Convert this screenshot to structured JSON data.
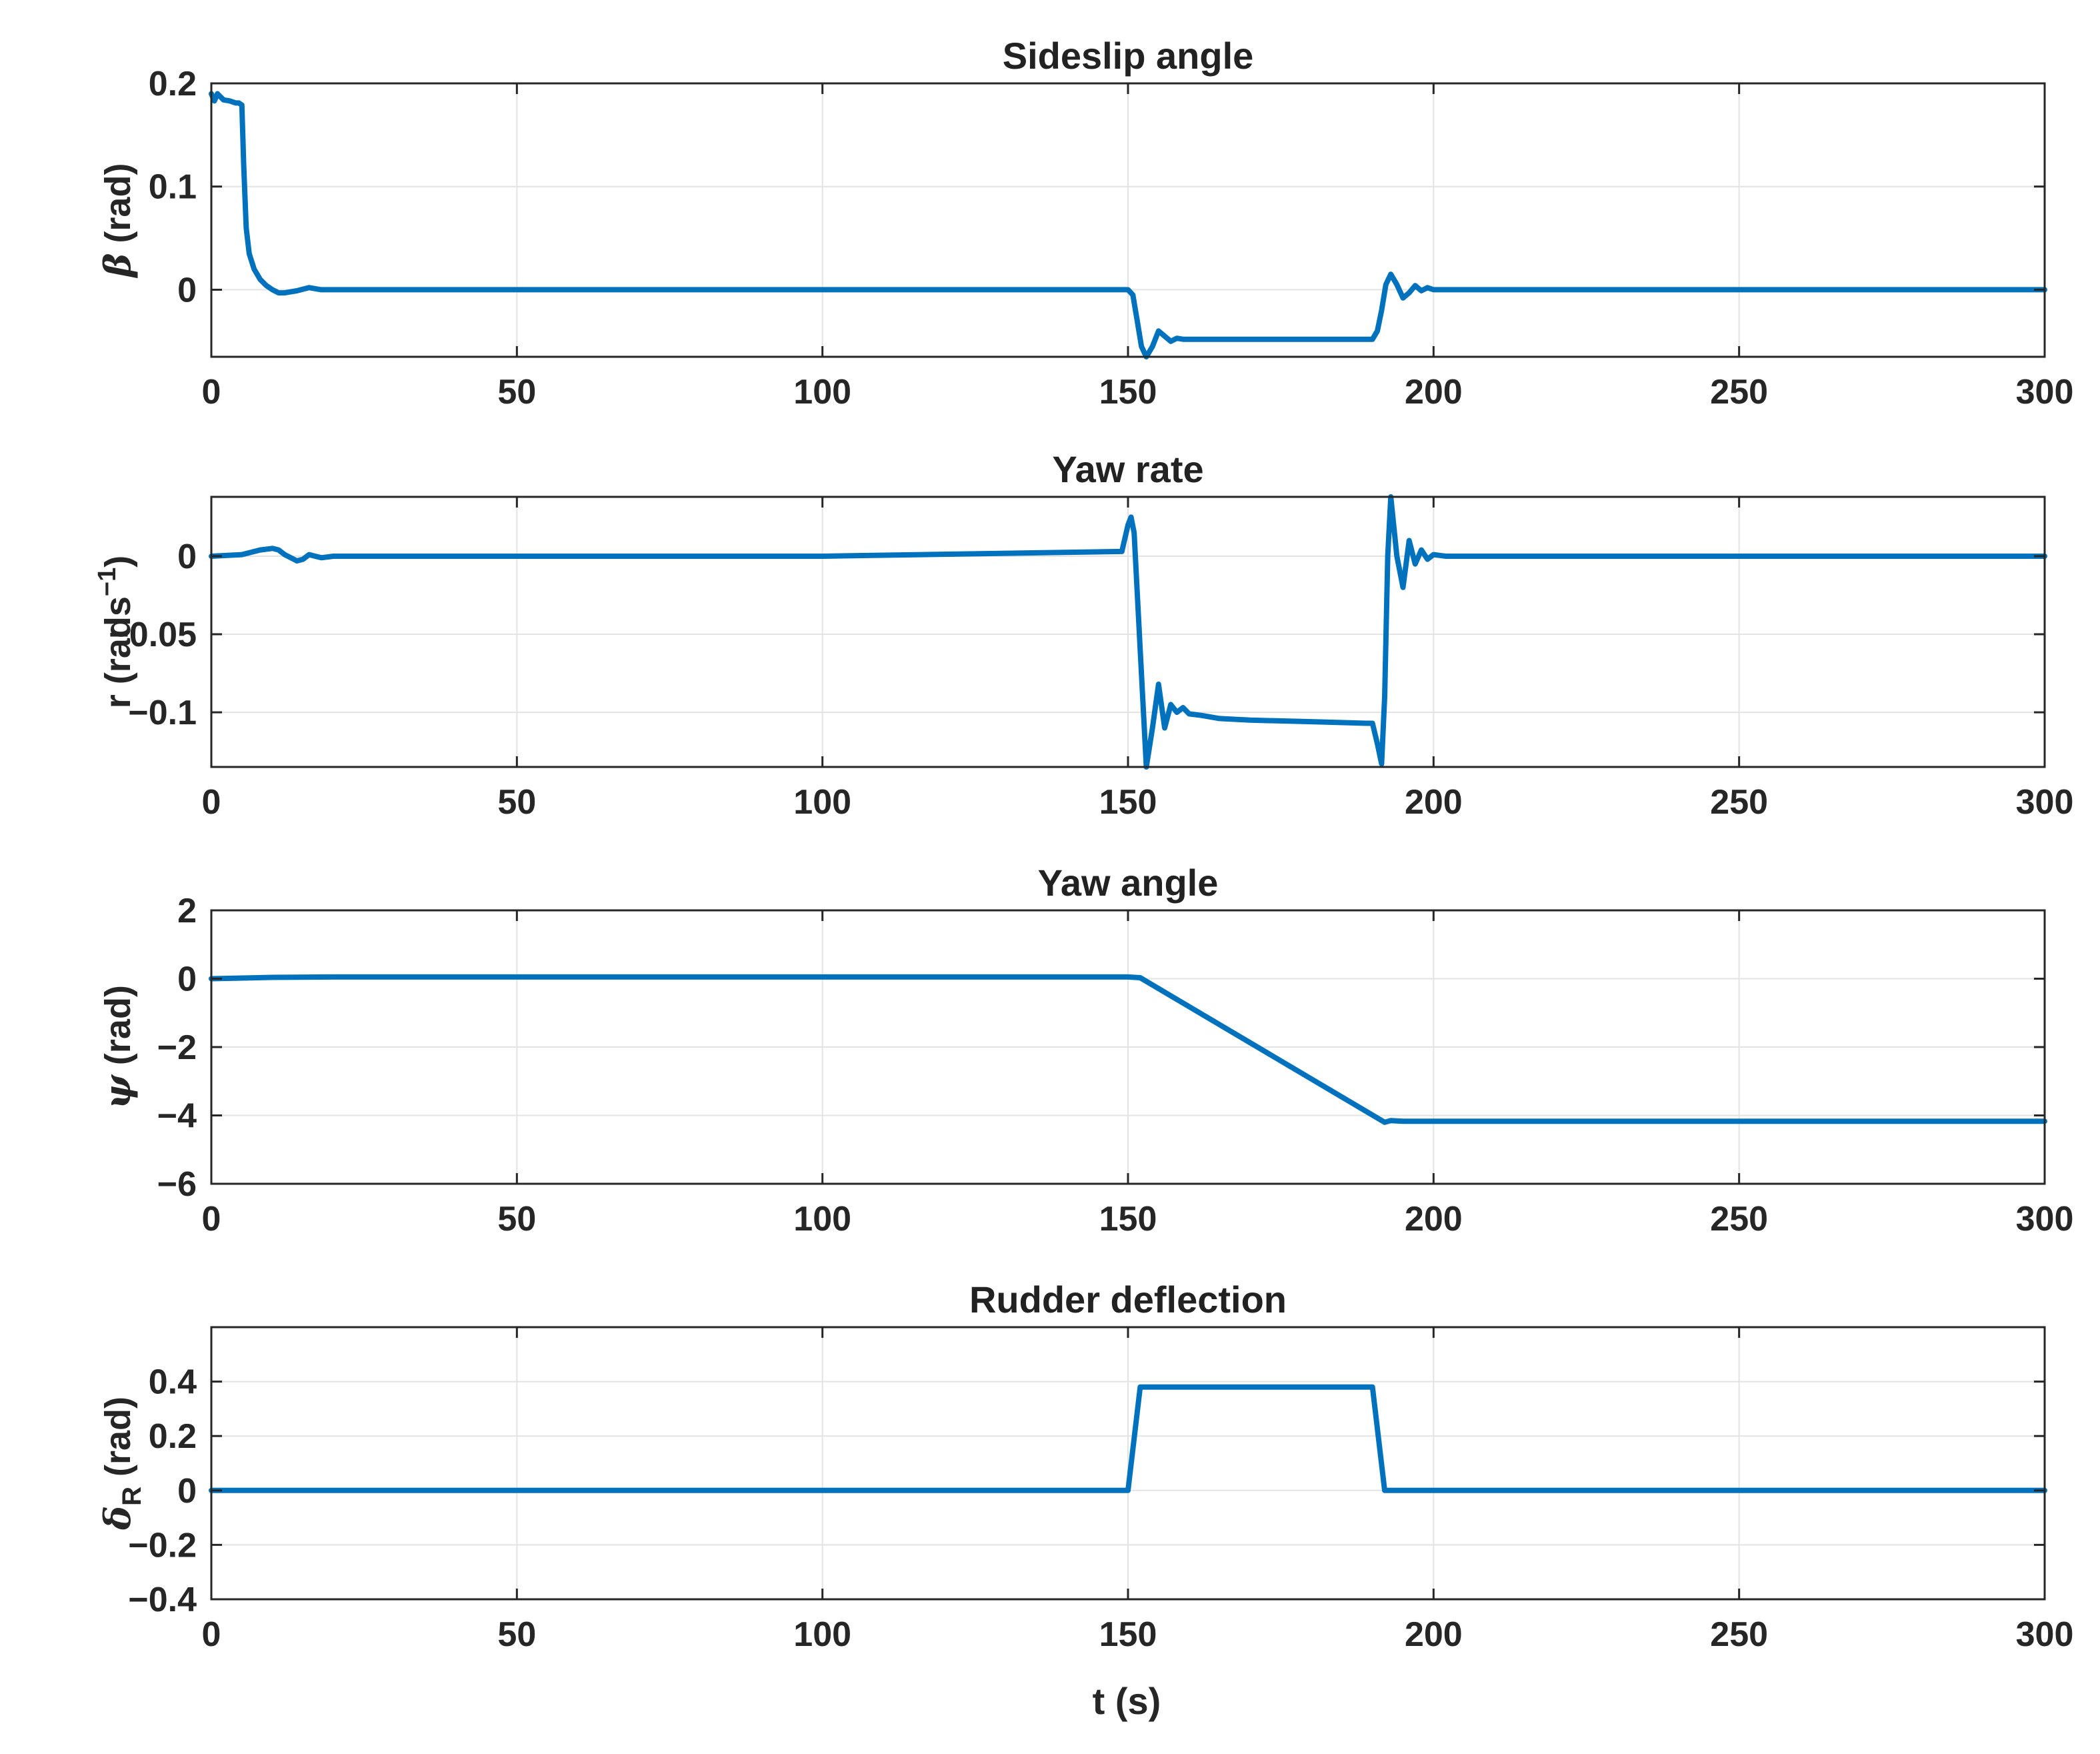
{
  "figure": {
    "line_color": "#0072BD",
    "xlabel": "t (s)"
  },
  "chart_data": [
    {
      "type": "line",
      "title": "Sideslip angle",
      "ylabel_symbol": "β",
      "ylabel_text": " (rad)",
      "xlim": [
        0,
        300
      ],
      "ylim": [
        -0.065,
        0.2
      ],
      "x_ticks": [
        0,
        50,
        100,
        150,
        200,
        250,
        300
      ],
      "x_tick_labels": [
        "0",
        "50",
        "100",
        "150",
        "200",
        "250",
        "300"
      ],
      "y_ticks": [
        0,
        0.1,
        0.2
      ],
      "y_tick_labels": [
        "0",
        "0.1",
        "0.2"
      ],
      "grid": true,
      "series": [
        {
          "x": [
            0,
            0.5,
            1,
            2,
            3,
            4,
            4.5,
            5,
            5.3,
            5.7,
            6.2,
            7,
            8,
            9,
            10,
            11,
            12,
            14,
            16,
            18,
            20,
            100,
            150,
            150.8,
            151.5,
            152.2,
            153,
            154,
            155,
            156,
            157,
            158,
            159,
            160,
            162,
            165,
            170,
            180,
            190,
            190.8,
            191.5,
            192.2,
            193,
            194,
            195,
            196,
            197,
            198,
            199,
            200,
            202,
            205,
            210,
            250,
            300
          ],
          "y": [
            0.19,
            0.183,
            0.19,
            0.184,
            0.183,
            0.181,
            0.181,
            0.179,
            0.12,
            0.06,
            0.035,
            0.02,
            0.01,
            0.004,
            0.0,
            -0.003,
            -0.003,
            -0.001,
            0.002,
            0.0,
            0.0,
            0.0,
            0.0,
            -0.005,
            -0.03,
            -0.055,
            -0.065,
            -0.055,
            -0.04,
            -0.045,
            -0.05,
            -0.047,
            -0.048,
            -0.048,
            -0.048,
            -0.048,
            -0.048,
            -0.048,
            -0.048,
            -0.04,
            -0.02,
            0.005,
            0.015,
            0.005,
            -0.008,
            -0.003,
            0.004,
            -0.001,
            0.002,
            0.0,
            0.0,
            0.0,
            0.0,
            0.0,
            0.0
          ]
        }
      ]
    },
    {
      "type": "line",
      "title": "Yaw rate",
      "ylabel_symbol": "",
      "ylabel_text": "r (rads",
      "ylabel_sup": "−1",
      "ylabel_after": ")",
      "xlim": [
        0,
        300
      ],
      "ylim": [
        -0.135,
        0.038
      ],
      "x_ticks": [
        0,
        50,
        100,
        150,
        200,
        250,
        300
      ],
      "x_tick_labels": [
        "0",
        "50",
        "100",
        "150",
        "200",
        "250",
        "300"
      ],
      "y_ticks": [
        -0.1,
        -0.05,
        0
      ],
      "y_tick_labels": [
        "−0.1",
        "−0.05",
        "0"
      ],
      "grid": true,
      "series": [
        {
          "x": [
            0,
            5,
            8,
            10,
            11,
            12,
            14,
            15,
            16,
            17,
            18,
            20,
            22,
            25,
            100,
            149,
            150,
            150.5,
            151,
            152,
            153,
            154,
            155,
            156,
            157,
            158,
            159,
            160,
            162,
            165,
            170,
            180,
            189,
            190,
            190.8,
            191.5,
            192,
            192.5,
            193,
            194,
            195,
            196,
            197,
            198,
            199,
            200,
            202,
            205,
            210,
            250,
            300
          ],
          "y": [
            0.0,
            0.001,
            0.004,
            0.005,
            0.004,
            0.001,
            -0.003,
            -0.002,
            0.001,
            0.0,
            -0.001,
            0.0,
            0.0,
            0.0,
            0.0,
            0.003,
            0.02,
            0.025,
            0.015,
            -0.06,
            -0.135,
            -0.11,
            -0.082,
            -0.11,
            -0.095,
            -0.1,
            -0.097,
            -0.101,
            -0.102,
            -0.104,
            -0.105,
            -0.106,
            -0.107,
            -0.107,
            -0.12,
            -0.133,
            -0.09,
            0.0,
            0.038,
            0.0,
            -0.02,
            0.01,
            -0.005,
            0.004,
            -0.002,
            0.001,
            0.0,
            0.0,
            0.0,
            0.0,
            0.0
          ]
        }
      ]
    },
    {
      "type": "line",
      "title": "Yaw angle",
      "ylabel_symbol": "ψ",
      "ylabel_text": " (rad)",
      "xlim": [
        0,
        300
      ],
      "ylim": [
        -6,
        2
      ],
      "x_ticks": [
        0,
        50,
        100,
        150,
        200,
        250,
        300
      ],
      "x_tick_labels": [
        "0",
        "50",
        "100",
        "150",
        "200",
        "250",
        "300"
      ],
      "y_ticks": [
        -6,
        -4,
        -2,
        0,
        2
      ],
      "y_tick_labels": [
        "−6",
        "−4",
        "−2",
        "0",
        "2"
      ],
      "grid": true,
      "series": [
        {
          "x": [
            0,
            10,
            20,
            100,
            150,
            152,
            192,
            193,
            195,
            200,
            300
          ],
          "y": [
            0.0,
            0.04,
            0.05,
            0.05,
            0.05,
            0.03,
            -4.2,
            -4.15,
            -4.17,
            -4.17,
            -4.17
          ]
        }
      ]
    },
    {
      "type": "line",
      "title": "Rudder deflection",
      "ylabel_symbol": "δ",
      "ylabel_sub": "R",
      "ylabel_text": " (rad)",
      "xlim": [
        0,
        300
      ],
      "ylim": [
        -0.4,
        0.6
      ],
      "x_ticks": [
        0,
        50,
        100,
        150,
        200,
        250,
        300
      ],
      "x_tick_labels": [
        "0",
        "50",
        "100",
        "150",
        "200",
        "250",
        "300"
      ],
      "y_ticks": [
        -0.4,
        -0.2,
        0,
        0.2,
        0.4
      ],
      "y_tick_labels": [
        "−0.4",
        "−0.2",
        "0",
        "0.2",
        "0.4"
      ],
      "grid": true,
      "series": [
        {
          "x": [
            0,
            150,
            152,
            190,
            192,
            300
          ],
          "y": [
            0.0,
            0.0,
            0.38,
            0.38,
            0.0,
            0.0
          ]
        }
      ]
    }
  ]
}
